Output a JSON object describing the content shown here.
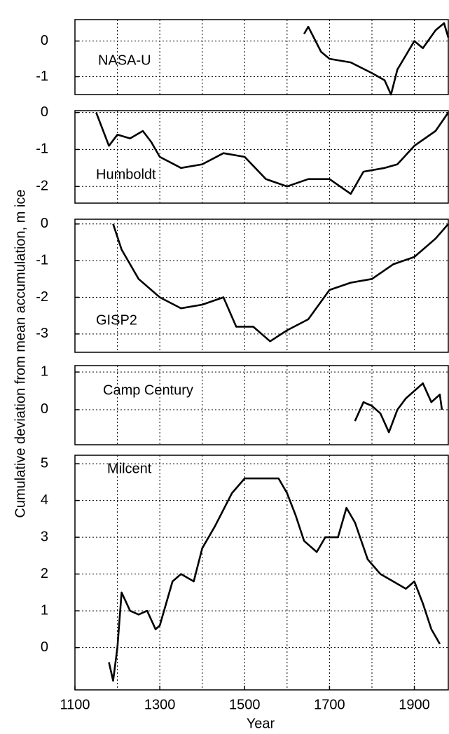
{
  "y_label": "Cumulative deviation from mean accumulation, m ice",
  "x_label": "Year",
  "chart_data": [
    {
      "type": "line",
      "label": "NASA-U",
      "color": "#000000",
      "ylim": [
        -1.5,
        0.6
      ],
      "yticks": [
        0,
        -1
      ],
      "x": [
        1640,
        1650,
        1680,
        1700,
        1750,
        1800,
        1830,
        1845,
        1860,
        1880,
        1900,
        1920,
        1950,
        1970,
        1980
      ],
      "values": [
        0.2,
        0.4,
        -0.3,
        -0.5,
        -0.6,
        -0.9,
        -1.1,
        -1.5,
        -0.8,
        -0.4,
        0.0,
        -0.2,
        0.3,
        0.5,
        0.1
      ]
    },
    {
      "type": "line",
      "label": "Humboldt",
      "color": "#000000",
      "ylim": [
        -2.45,
        0.05
      ],
      "yticks": [
        0,
        -1,
        -2
      ],
      "x": [
        1150,
        1180,
        1200,
        1230,
        1260,
        1280,
        1300,
        1350,
        1400,
        1450,
        1500,
        1550,
        1600,
        1650,
        1700,
        1750,
        1780,
        1830,
        1860,
        1900,
        1950,
        1980
      ],
      "values": [
        0,
        -0.9,
        -0.6,
        -0.7,
        -0.5,
        -0.8,
        -1.2,
        -1.5,
        -1.4,
        -1.1,
        -1.2,
        -1.8,
        -2.0,
        -1.8,
        -1.8,
        -2.2,
        -1.6,
        -1.5,
        -1.4,
        -0.9,
        -0.5,
        0
      ]
    },
    {
      "type": "line",
      "label": "GISP2",
      "color": "#000000",
      "ylim": [
        -3.5,
        0.13
      ],
      "yticks": [
        0,
        -1,
        -2,
        -3
      ],
      "x": [
        1190,
        1210,
        1250,
        1300,
        1350,
        1400,
        1450,
        1480,
        1520,
        1560,
        1600,
        1650,
        1700,
        1750,
        1800,
        1850,
        1900,
        1950,
        1980
      ],
      "values": [
        0,
        -0.7,
        -1.5,
        -2.0,
        -2.3,
        -2.2,
        -2.0,
        -2.8,
        -2.8,
        -3.2,
        -2.9,
        -2.6,
        -1.8,
        -1.6,
        -1.5,
        -1.1,
        -0.9,
        -0.4,
        0
      ]
    },
    {
      "type": "line",
      "label": "Camp Century",
      "color": "#000000",
      "ylim": [
        -0.93,
        1.17
      ],
      "yticks": [
        1,
        0
      ],
      "x": [
        1760,
        1780,
        1800,
        1820,
        1840,
        1860,
        1880,
        1900,
        1920,
        1940,
        1960,
        1965
      ],
      "values": [
        -0.3,
        0.2,
        0.1,
        -0.1,
        -0.6,
        0.0,
        0.3,
        0.5,
        0.7,
        0.2,
        0.4,
        0.0
      ]
    },
    {
      "type": "line",
      "label": "Milcent",
      "color": "#000000",
      "ylim": [
        -1.15,
        5.23
      ],
      "yticks": [
        5,
        4,
        3,
        2,
        1,
        0
      ],
      "xlim": [
        1100,
        1980
      ],
      "xticks": [
        1100,
        1300,
        1500,
        1700,
        1900
      ],
      "x": [
        1180,
        1190,
        1200,
        1210,
        1230,
        1250,
        1270,
        1290,
        1300,
        1330,
        1350,
        1380,
        1400,
        1430,
        1470,
        1500,
        1520,
        1550,
        1580,
        1600,
        1620,
        1640,
        1670,
        1690,
        1720,
        1740,
        1760,
        1790,
        1820,
        1850,
        1880,
        1900,
        1920,
        1940,
        1960
      ],
      "values": [
        -0.4,
        -0.9,
        0.0,
        1.5,
        1.0,
        0.9,
        1.0,
        0.5,
        0.6,
        1.8,
        2.0,
        1.8,
        2.7,
        3.3,
        4.2,
        4.6,
        4.6,
        4.6,
        4.6,
        4.2,
        3.6,
        2.9,
        2.6,
        3.0,
        3.0,
        3.8,
        3.4,
        2.4,
        2.0,
        1.8,
        1.6,
        1.8,
        1.2,
        0.5,
        0.1
      ]
    }
  ]
}
